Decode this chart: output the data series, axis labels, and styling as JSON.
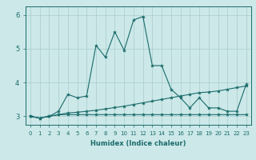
{
  "title": "",
  "xlabel": "Humidex (Indice chaleur)",
  "bg_color": "#cce8e8",
  "line_color": "#1a6b6b",
  "grid_color": "#aacccc",
  "x_ticks": [
    0,
    1,
    2,
    3,
    4,
    5,
    6,
    7,
    8,
    9,
    10,
    11,
    12,
    13,
    14,
    15,
    16,
    17,
    18,
    19,
    20,
    21,
    22,
    23
  ],
  "y_ticks": [
    3,
    4,
    5,
    6
  ],
  "ylim": [
    2.75,
    6.25
  ],
  "xlim": [
    -0.5,
    23.5
  ],
  "series1_y": [
    3.0,
    2.95,
    3.0,
    3.05,
    3.05,
    3.05,
    3.05,
    3.05,
    3.05,
    3.05,
    3.05,
    3.05,
    3.05,
    3.05,
    3.05,
    3.05,
    3.05,
    3.05,
    3.05,
    3.05,
    3.05,
    3.05,
    3.05,
    3.05
  ],
  "series2_y": [
    3.0,
    2.95,
    3.0,
    3.05,
    3.1,
    3.12,
    3.15,
    3.18,
    3.22,
    3.26,
    3.3,
    3.35,
    3.4,
    3.45,
    3.5,
    3.55,
    3.6,
    3.65,
    3.7,
    3.72,
    3.75,
    3.8,
    3.85,
    3.9
  ],
  "series3_y": [
    3.0,
    2.95,
    3.0,
    3.15,
    3.65,
    3.55,
    3.6,
    5.1,
    4.75,
    5.5,
    4.95,
    5.85,
    5.95,
    4.5,
    4.5,
    3.8,
    3.55,
    3.25,
    3.55,
    3.25,
    3.25,
    3.15,
    3.15,
    3.95
  ],
  "marker": "*",
  "marker_size": 3,
  "line_width": 0.8,
  "xlabel_fontsize": 6,
  "tick_fontsize": 5
}
